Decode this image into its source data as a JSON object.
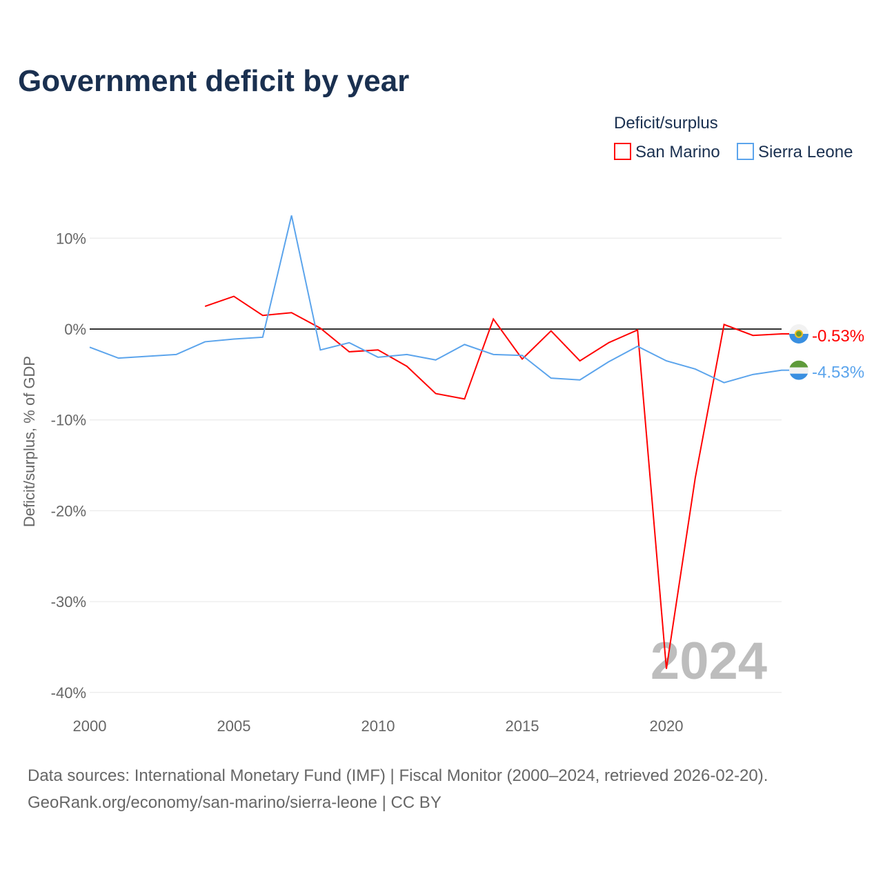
{
  "chart_data": {
    "type": "line",
    "title": "Government deficit by year",
    "ylabel": "Deficit/surplus, % of GDP",
    "xlabel": "",
    "legend_title": "Deficit/surplus",
    "legend_position": "top-right",
    "ylim": [
      -40,
      13
    ],
    "xlim": [
      2000,
      2024
    ],
    "yticks": [
      10,
      0,
      -10,
      -20,
      -30,
      -40
    ],
    "ytick_labels": [
      "10%",
      "0%",
      "-10%",
      "-20%",
      "-30%",
      "-40%"
    ],
    "xticks": [
      2000,
      2005,
      2010,
      2015,
      2020
    ],
    "xtick_labels": [
      "2000",
      "2005",
      "2010",
      "2015",
      "2020"
    ],
    "year_watermark": "2024",
    "series": [
      {
        "name": "San Marino",
        "color": "#ff0000",
        "end_label": "-0.53%",
        "flag": "san-marino-flag",
        "x": [
          2004,
          2005,
          2006,
          2007,
          2008,
          2009,
          2010,
          2011,
          2012,
          2013,
          2014,
          2015,
          2016,
          2017,
          2018,
          2019,
          2020,
          2021,
          2022,
          2023,
          2024
        ],
        "values": [
          2.5,
          3.6,
          1.5,
          1.8,
          0.1,
          -2.5,
          -2.3,
          -4.1,
          -7.1,
          -7.7,
          1.1,
          -3.3,
          -0.2,
          -3.5,
          -1.5,
          -0.1,
          -37.4,
          -16.4,
          0.5,
          -0.7,
          -0.53
        ]
      },
      {
        "name": "Sierra Leone",
        "color": "#5ba4ec",
        "end_label": "-4.53%",
        "flag": "sierra-leone-flag",
        "x": [
          2000,
          2001,
          2002,
          2003,
          2004,
          2005,
          2006,
          2007,
          2008,
          2009,
          2010,
          2011,
          2012,
          2013,
          2014,
          2015,
          2016,
          2017,
          2018,
          2019,
          2020,
          2021,
          2022,
          2023,
          2024
        ],
        "values": [
          -2.0,
          -3.2,
          -3.0,
          -2.8,
          -1.4,
          -1.1,
          -0.9,
          12.5,
          -2.3,
          -1.5,
          -3.1,
          -2.8,
          -3.4,
          -1.7,
          -2.8,
          -2.9,
          -5.4,
          -5.6,
          -3.6,
          -1.9,
          -3.5,
          -4.4,
          -5.9,
          -5.0,
          -4.53
        ]
      }
    ]
  },
  "footer": {
    "source": "Data sources: International Monetary Fund (IMF) | Fiscal Monitor (2000–2024, retrieved 2026-02-20).",
    "link": "GeoRank.org/economy/san-marino/sierra-leone | CC BY"
  }
}
